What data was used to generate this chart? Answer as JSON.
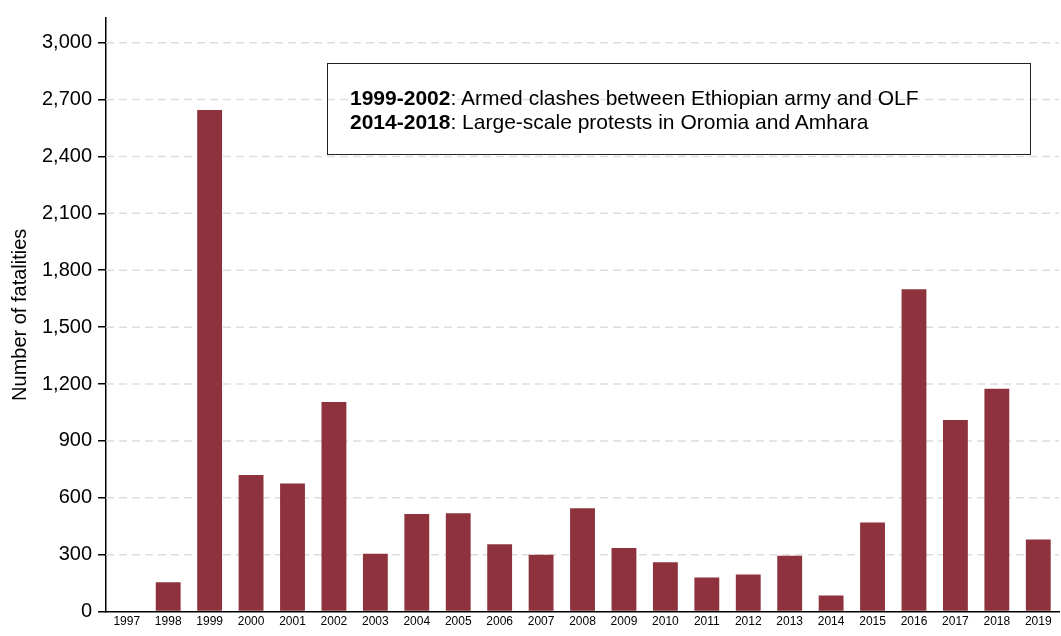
{
  "chart_data": {
    "type": "bar",
    "ylabel": "Number of fatalities",
    "categories": [
      "1997",
      "1998",
      "1999",
      "2000",
      "2001",
      "2002",
      "2003",
      "2004",
      "2005",
      "2006",
      "2007",
      "2008",
      "2009",
      "2010",
      "2011",
      "2012",
      "2013",
      "2014",
      "2015",
      "2016",
      "2017",
      "2018",
      "2019"
    ],
    "values": [
      5,
      155,
      2645,
      720,
      675,
      1105,
      305,
      515,
      518,
      355,
      300,
      545,
      335,
      260,
      180,
      195,
      295,
      85,
      470,
      1700,
      1010,
      1175,
      380
    ],
    "color": "#8e333d",
    "ylim": [
      0,
      3130
    ],
    "yticks": [
      0,
      300,
      600,
      900,
      {
        "value": 1200,
        "label": "1,200"
      },
      {
        "value": 1500,
        "label": "1,500"
      },
      {
        "value": 1800,
        "label": "1,800"
      },
      {
        "value": 2100,
        "label": "2,100"
      },
      {
        "value": 2400,
        "label": "2,400"
      },
      {
        "value": 2700,
        "label": "2,700"
      },
      {
        "value": 3000,
        "label": "3,000"
      }
    ],
    "grid": "y",
    "legend": false,
    "annotations": [
      "1999-2002: Armed clashes between Ethiopian army and OLF",
      "2014-2018: Large-scale protests in Oromia and Amhara"
    ]
  }
}
